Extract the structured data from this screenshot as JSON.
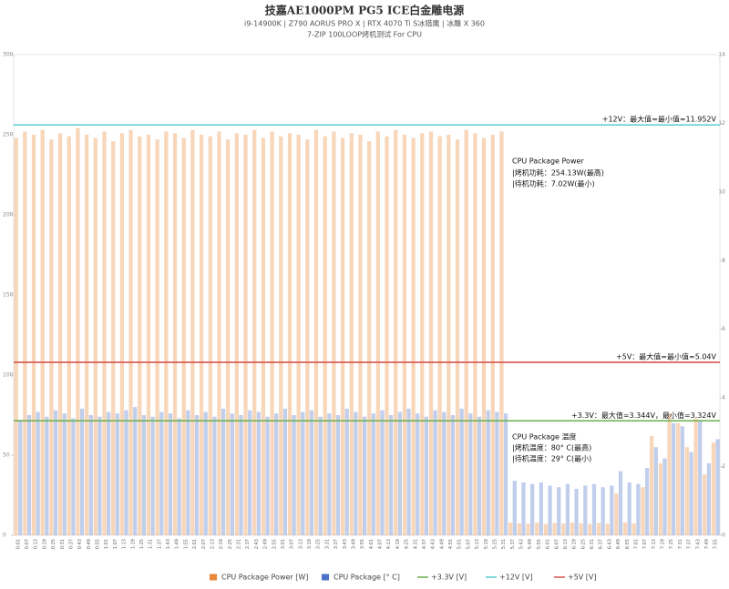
{
  "chart_data": {
    "type": "bar",
    "title": "技嘉AE1000PM PG5 ICE白金雕电源",
    "subtitle": [
      "i9-14900K | Z790 AORUS PRO X | RTX 4070 Ti S冰猎鹰 | 冰雕 X 360",
      "7-ZIP 100LOOP烤机测试 For CPU"
    ],
    "categories": [
      "0:01",
      "0:07",
      "0:13",
      "0:19",
      "0:25",
      "0:31",
      "0:37",
      "0:43",
      "0:49",
      "0:55",
      "1:01",
      "1:07",
      "1:13",
      "1:19",
      "1:25",
      "1:31",
      "1:37",
      "1:43",
      "1:49",
      "1:55",
      "2:01",
      "2:07",
      "2:13",
      "2:19",
      "2:25",
      "2:31",
      "2:37",
      "2:43",
      "2:49",
      "2:55",
      "3:01",
      "3:07",
      "3:13",
      "3:19",
      "3:25",
      "3:31",
      "3:37",
      "3:43",
      "3:49",
      "3:55",
      "4:01",
      "4:07",
      "4:13",
      "4:19",
      "4:25",
      "4:31",
      "4:37",
      "4:43",
      "4:49",
      "4:55",
      "5:01",
      "5:07",
      "5:13",
      "5:19",
      "5:25",
      "5:31",
      "5:37",
      "5:43",
      "5:49",
      "5:55",
      "6:01",
      "6:07",
      "6:13",
      "6:19",
      "6:25",
      "6:31",
      "6:37",
      "6:43",
      "6:49",
      "6:55",
      "7:01",
      "7:07",
      "7:13",
      "7:19",
      "7:25",
      "7:31",
      "7:37",
      "7:43",
      "7:49",
      "7:55"
    ],
    "series": [
      {
        "name": "CPU Package Power [W]",
        "color": "#e8893a",
        "values": [
          248,
          252,
          250,
          253,
          247,
          251,
          249,
          254.13,
          250,
          248,
          252,
          246,
          251,
          253,
          249,
          250,
          247,
          252,
          251,
          248,
          253,
          250,
          249,
          252,
          247,
          251,
          250,
          253,
          248,
          252,
          249,
          251,
          250,
          247,
          253,
          249,
          252,
          248,
          251,
          250,
          246,
          252,
          249,
          253,
          250,
          248,
          251,
          252,
          249,
          250,
          247,
          253,
          251,
          248,
          250,
          252,
          8,
          7.5,
          7.2,
          7.8,
          7.02,
          7.6,
          7.3,
          7.9,
          7.4,
          7.1,
          7.7,
          7.3,
          26,
          8,
          7.5,
          30,
          62,
          45,
          76,
          70,
          55,
          73,
          38,
          58
        ]
      },
      {
        "name": "CPU Package [° C]",
        "color": "#4a72c8",
        "values": [
          72,
          75,
          77,
          74,
          78,
          76,
          73,
          79,
          75,
          74,
          77,
          76,
          78,
          80,
          75,
          74,
          77,
          76,
          73,
          78,
          75,
          77,
          74,
          79,
          76,
          75,
          78,
          77,
          74,
          76,
          79,
          75,
          77,
          78,
          74,
          76,
          75,
          79,
          77,
          74,
          76,
          78,
          75,
          77,
          79,
          76,
          74,
          78,
          77,
          75,
          79,
          76,
          74,
          78,
          77,
          76,
          34,
          33,
          32,
          33,
          31,
          30,
          32,
          29,
          31,
          32,
          30,
          31,
          40,
          33,
          32,
          42,
          55,
          48,
          70,
          68,
          52,
          72,
          45,
          60
        ]
      }
    ],
    "reference_lines": [
      {
        "name": "+3.3V [V]",
        "color": "#6ab04c",
        "value": 3.334,
        "axis": "y2",
        "label": "+3.3V：最大值=3.344V，最小值=3.324V"
      },
      {
        "name": "+12V [V]",
        "color": "#5bc8d0",
        "value": 11.952,
        "axis": "y2",
        "label": "+12V：最大值=最小值=11.952V"
      },
      {
        "name": "+5V [V]",
        "color": "#d9534f",
        "value": 5.04,
        "axis": "y2",
        "label": "+5V：最大值=最小值=5.04V"
      }
    ],
    "annotations": [
      "CPU Package Power",
      "|烤机功耗：254.13W(最高)",
      "|待机功耗：7.02W(最小)",
      "CPU Package 温度",
      "|烤机温度：80° C(最高)",
      "|待机温度：29° C(最小)"
    ],
    "ylim": [
      0,
      300
    ],
    "yticks": [
      0,
      50,
      100,
      150,
      200,
      250,
      300
    ],
    "y2lim": [
      0,
      14
    ],
    "y2ticks": [
      0,
      2,
      4,
      6,
      8,
      10,
      12,
      14
    ],
    "grid": false
  }
}
